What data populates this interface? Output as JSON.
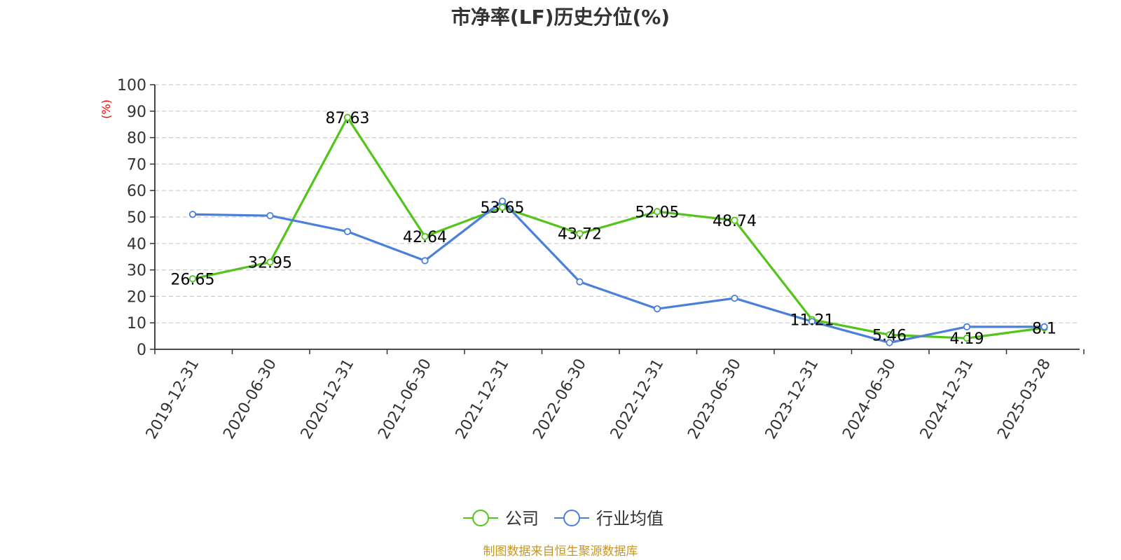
{
  "chart_data": {
    "type": "line",
    "title": "市净率(LF)历史分位(%)",
    "ylabel": "(%)",
    "xlabel": "",
    "source": "制图数据来自恒生聚源数据库",
    "categories": [
      "2019-12-31",
      "2020-06-30",
      "2020-12-31",
      "2021-06-30",
      "2021-12-31",
      "2022-06-30",
      "2022-12-31",
      "2023-06-30",
      "2023-12-31",
      "2024-06-30",
      "2024-12-31",
      "2025-03-28"
    ],
    "ylim": [
      0,
      100
    ],
    "yticks": [
      0,
      10,
      20,
      30,
      40,
      50,
      60,
      70,
      80,
      90,
      100
    ],
    "grid": true,
    "legend_position": "bottom-center",
    "series": [
      {
        "name": "公司",
        "color": "#52c41a",
        "values": [
          26.65,
          32.95,
          87.63,
          42.64,
          53.65,
          43.72,
          52.05,
          48.74,
          11.21,
          5.46,
          4.19,
          8.1
        ],
        "labels": [
          "26.65",
          "32.95",
          "87.63",
          "42.64",
          "53.65",
          "43.72",
          "52.05",
          "48.74",
          "11.21",
          "5.46",
          "4.19",
          "8.1"
        ]
      },
      {
        "name": "行业均值",
        "color": "#4a7fdb",
        "values": [
          51.0,
          50.5,
          44.5,
          33.5,
          56.0,
          25.5,
          15.3,
          19.3,
          10.5,
          2.5,
          8.5,
          8.5
        ]
      }
    ],
    "colors": {
      "axis": "#333333",
      "grid": "#cccccc",
      "unit_label": "#ff0000",
      "source": "#c8961e"
    }
  }
}
